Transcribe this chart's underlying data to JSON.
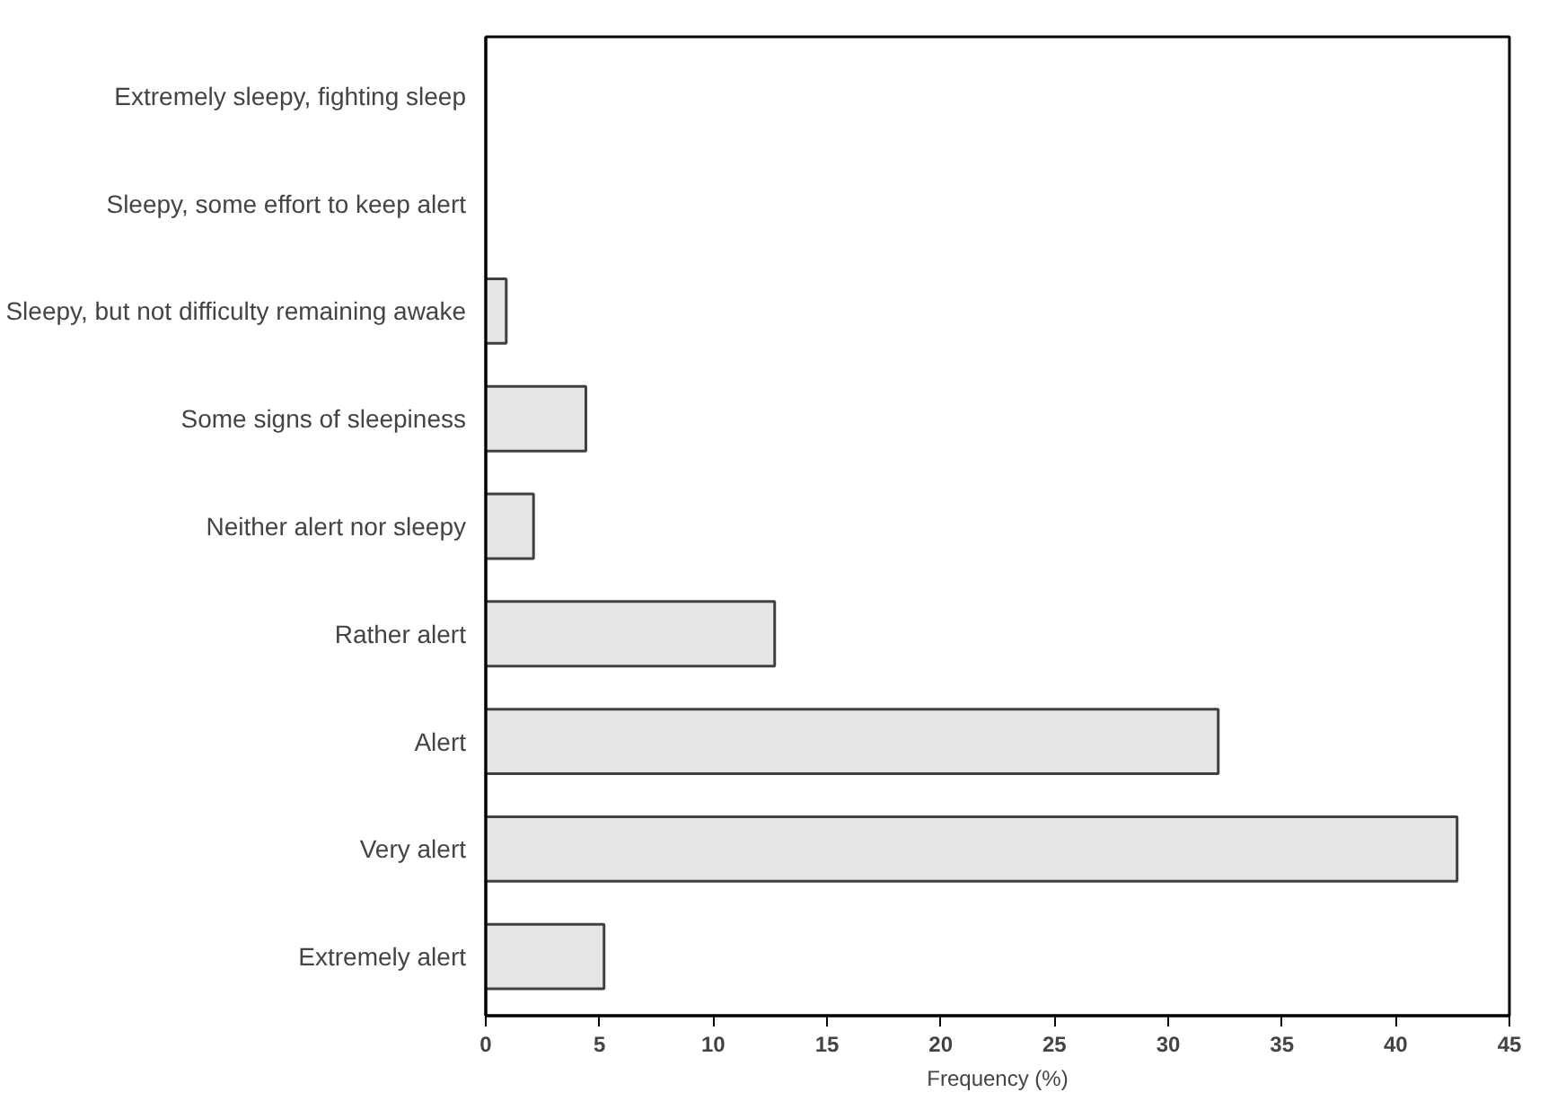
{
  "chart_data": {
    "type": "bar",
    "orientation": "horizontal",
    "xlabel": "Frequency (%)",
    "categories": [
      "Extremely sleepy, fighting sleep",
      "Sleepy, some effort to keep alert",
      "Sleepy, but not difficulty remaining awake",
      "Some signs of sleepiness",
      "Neither alert nor sleepy",
      "Rather alert",
      "Alert",
      "Very alert",
      "Extremely alert"
    ],
    "values": [
      null,
      null,
      0.9,
      4.4,
      2.1,
      12.7,
      32.2,
      42.7,
      5.2
    ],
    "color": "#e5e5e5",
    "xlim": [
      0,
      45
    ],
    "xticks": [
      0,
      5,
      10,
      15,
      20,
      25,
      30,
      35,
      40,
      45
    ],
    "grid": false
  }
}
